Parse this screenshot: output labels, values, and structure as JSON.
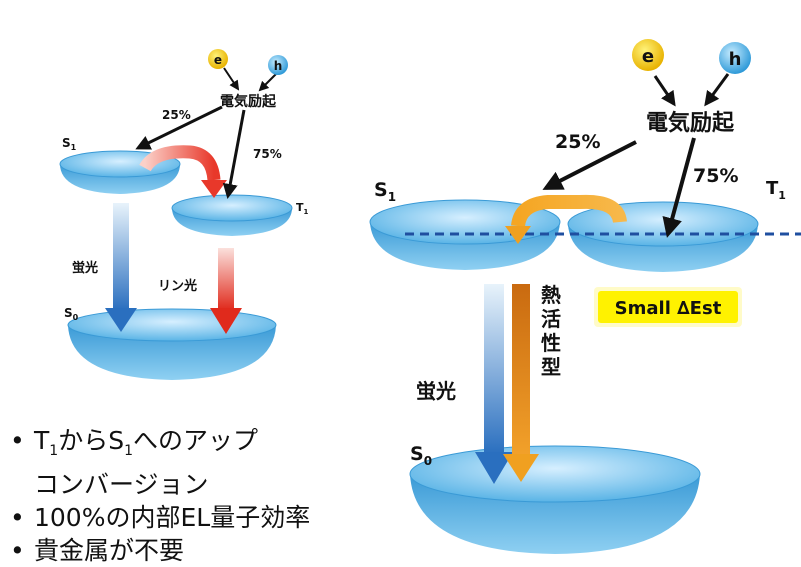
{
  "left_diagram": {
    "electron_label": "e",
    "hole_label": "h",
    "excitation_label": "電気励起",
    "singlet_pct": "25%",
    "triplet_pct": "75%",
    "s1_base": "S",
    "s1_sub": "1",
    "t1_base": "T",
    "t1_sub": "1",
    "s0_base": "S",
    "s0_sub": "0",
    "fluorescence_label": "蛍光",
    "phosphorescence_label": "リン光"
  },
  "right_diagram": {
    "electron_label": "e",
    "hole_label": "h",
    "excitation_label": "電気励起",
    "singlet_pct": "25%",
    "triplet_pct": "75%",
    "s1_base": "S",
    "s1_sub": "1",
    "t1_base": "T",
    "t1_sub": "1",
    "s0_base": "S",
    "s0_sub": "0",
    "fluorescence_label": "蛍光",
    "tadf_label": [
      "熱",
      "活",
      "性",
      "型"
    ],
    "small_dest_label": "Small ∆Est"
  },
  "bullets": {
    "b1_a": "T",
    "b1_sub1": "1",
    "b1_b": "からS",
    "b1_sub2": "1",
    "b1_c": "へのアップ",
    "b1_cont": "コンバージョン",
    "b2": "100%の内部EL量子効率",
    "b3": "貴金属が不要"
  },
  "colors": {
    "disc": "#5ab4e6",
    "electron": "#f5c800",
    "hole": "#47aee5",
    "reverse_isc_orange": "#f0a020",
    "red_arrow": "#e8382a",
    "blue_arrow": "#2a6fbf",
    "small_dest_bg": "#fff200"
  }
}
